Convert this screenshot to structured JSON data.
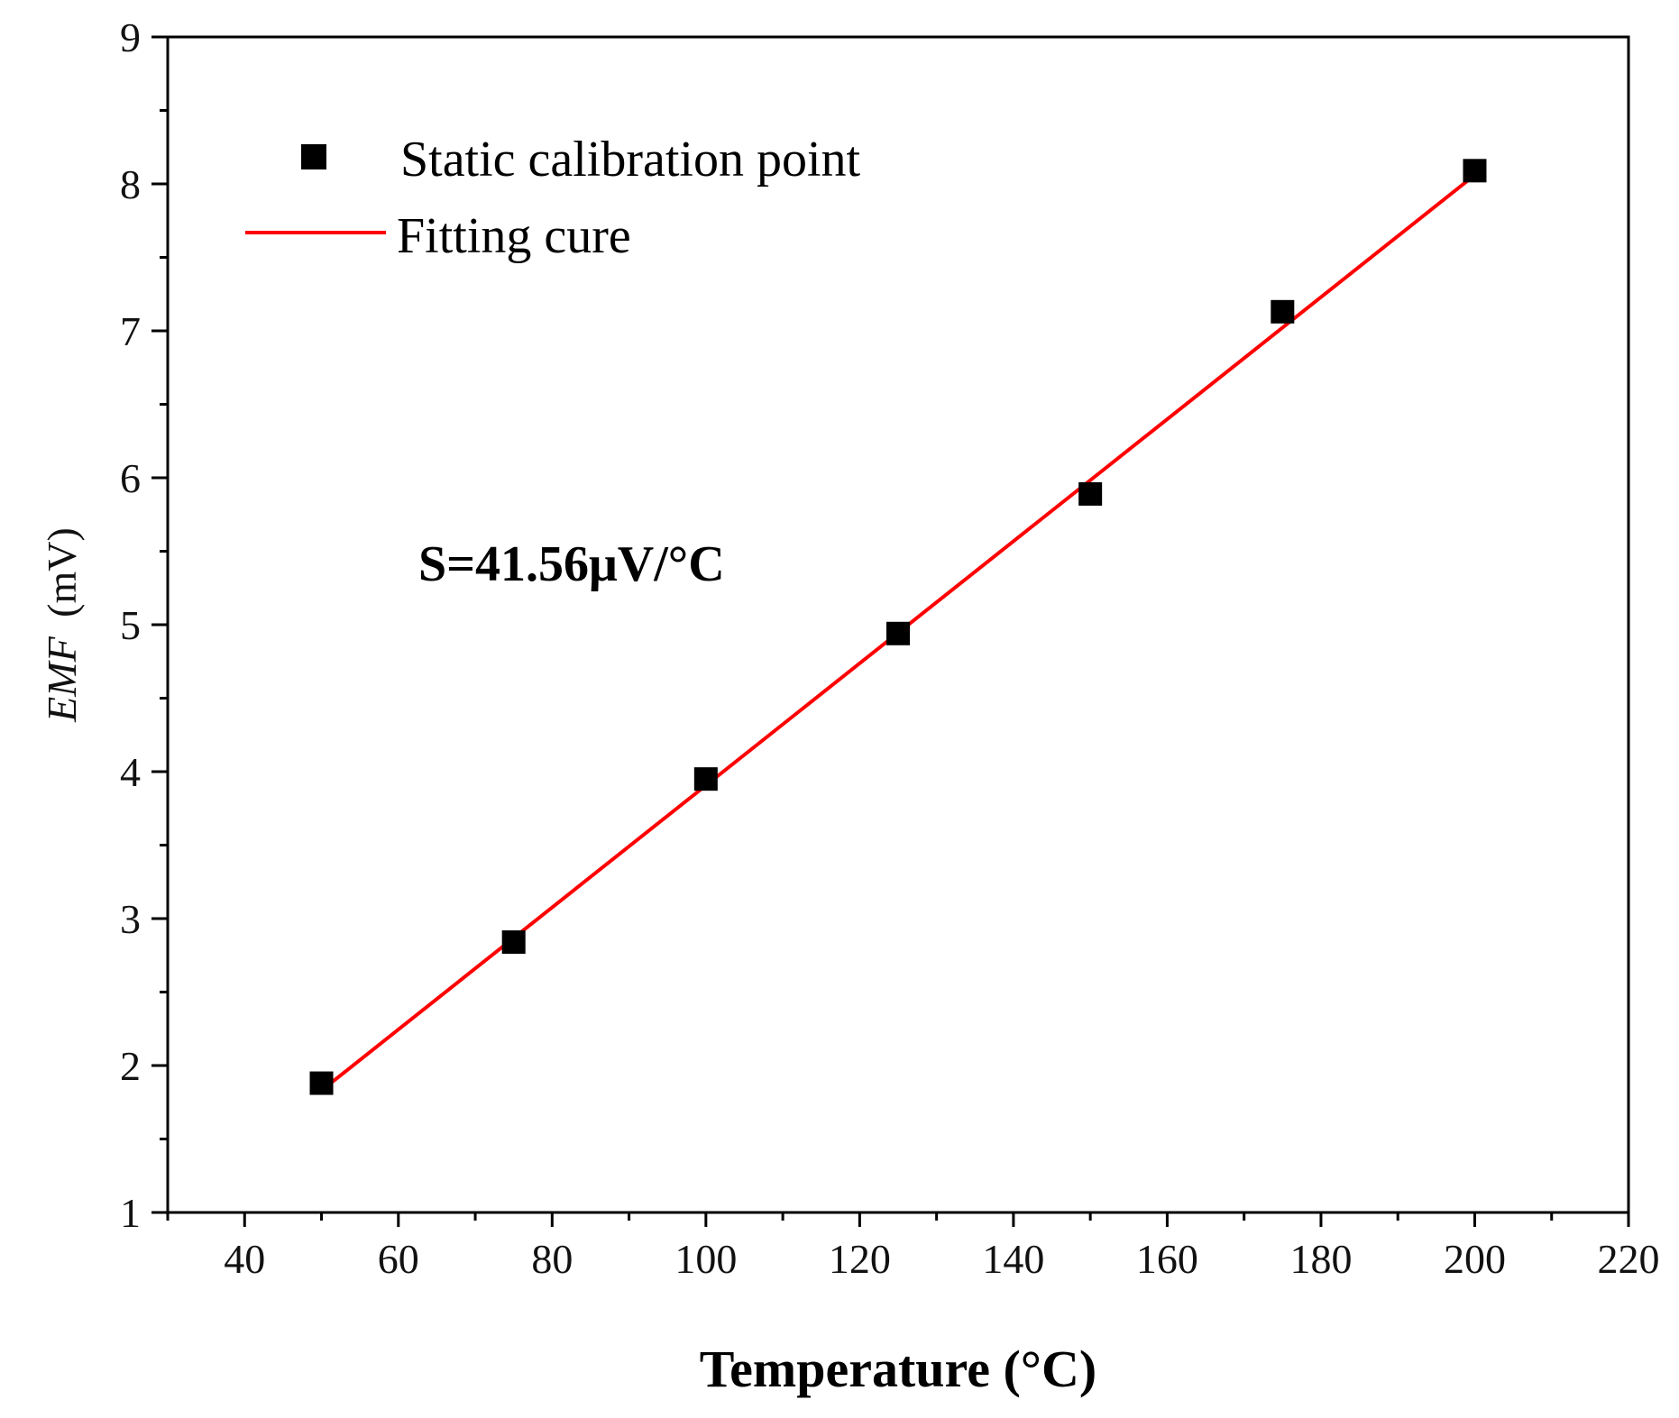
{
  "chart_data": {
    "type": "scatter",
    "title": "",
    "xlabel": "Temperature (°C)",
    "ylabel_italic": "EMF",
    "ylabel_unit": "(mV)",
    "xlim": [
      30,
      220
    ],
    "ylim": [
      1,
      9
    ],
    "xticks": [
      40,
      60,
      80,
      100,
      120,
      140,
      160,
      180,
      200,
      220
    ],
    "yticks": [
      1,
      2,
      3,
      4,
      5,
      6,
      7,
      8,
      9
    ],
    "grid": false,
    "legend_position": "top-left",
    "series": [
      {
        "name": "Static calibration point",
        "kind": "scatter",
        "marker": "square",
        "color": "#000000",
        "x": [
          50,
          75,
          100,
          125,
          150,
          175,
          200
        ],
        "y": [
          1.88,
          2.84,
          3.95,
          4.94,
          5.89,
          7.13,
          8.09
        ]
      },
      {
        "name": "Fitting cure",
        "kind": "line",
        "color": "#ff0000",
        "x": [
          50,
          200
        ],
        "y": [
          1.83,
          8.06
        ]
      }
    ],
    "annotation": "S=41.56μV/°C"
  }
}
